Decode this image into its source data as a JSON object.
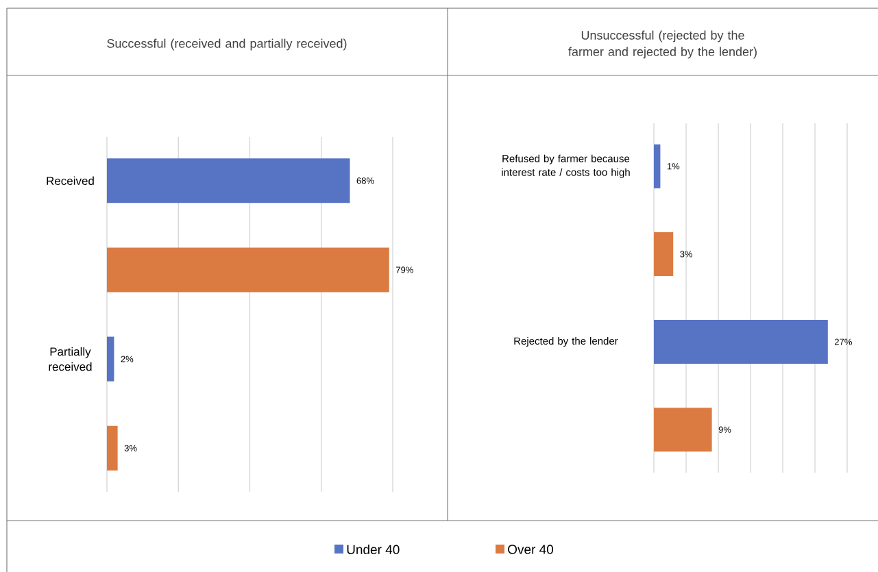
{
  "chart_data": [
    {
      "type": "bar",
      "orientation": "horizontal",
      "title": "Successful (received and partially received)",
      "categories": [
        "Received",
        "Partially received"
      ],
      "series": [
        {
          "name": "Under 40",
          "color": "#5673c4",
          "values": [
            68,
            2
          ],
          "value_labels": [
            "68%",
            "2%"
          ]
        },
        {
          "name": "Over 40",
          "color": "#db7b41",
          "values": [
            79,
            3
          ],
          "value_labels": [
            "79%",
            "3%"
          ]
        }
      ],
      "xlim": [
        0,
        80
      ],
      "xticks": [
        {
          "value": 0,
          "label": null
        },
        {
          "value": 20,
          "label": null
        },
        {
          "value": 40,
          "label": null
        },
        {
          "value": 60,
          "label": null
        },
        {
          "value": 80,
          "label": null
        }
      ],
      "grid": "x",
      "tick_labels": "y",
      "legend": "bottom"
    },
    {
      "type": "bar",
      "orientation": "horizontal",
      "title": "Unsuccessful (rejected by the farmer and rejected by the lender)",
      "categories": [
        "Refused by farmer because interest rate / costs too high",
        "Rejected by the lender"
      ],
      "series": [
        {
          "color": "#5673c4",
          "values": [
            1,
            27
          ],
          "value_labels": [
            "1%",
            "27%"
          ]
        },
        {
          "color": "#db7b41",
          "values": [
            3,
            9
          ],
          "value_labels": [
            "3%",
            "9%"
          ]
        }
      ],
      "xlim": [
        0,
        30
      ],
      "xticks": [
        {
          "value": 0,
          "label": null
        },
        {
          "value": 5,
          "label": null
        },
        {
          "value": 10,
          "label": null
        },
        {
          "value": 15,
          "label": null
        },
        {
          "value": 20,
          "label": null
        },
        {
          "value": 25,
          "label": null
        },
        {
          "value": 30,
          "label": null
        }
      ],
      "grid": "x",
      "tick_labels": "y"
    }
  ]
}
